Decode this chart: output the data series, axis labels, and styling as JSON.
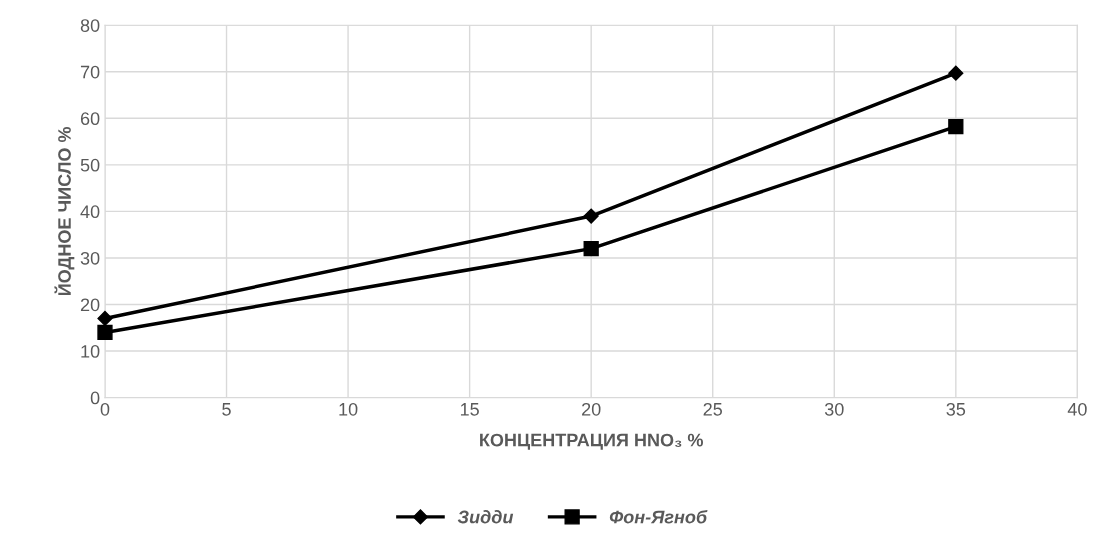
{
  "chart_data": {
    "type": "line",
    "xlabel": "КОНЦЕНТРАЦИЯ HNO₃ %",
    "ylabel": "ЙОДНОЕ ЧИСЛО %",
    "xlim": [
      0,
      40
    ],
    "xticks": [
      0,
      5,
      10,
      15,
      20,
      25,
      30,
      35,
      40
    ],
    "ylim": [
      0,
      80
    ],
    "yticks": [
      0,
      10,
      20,
      30,
      40,
      50,
      60,
      70,
      80
    ],
    "grid": true,
    "legend": "bottom",
    "line_style": "solid",
    "series": [
      {
        "name": "Зидди",
        "color": "#000000",
        "marker": "diamond",
        "x": [
          0,
          20,
          35
        ],
        "values": [
          17,
          39,
          69.7
        ]
      },
      {
        "name": "Фон-Ягноб",
        "color": "#000000",
        "marker": "square",
        "x": [
          0,
          20,
          35
        ],
        "values": [
          14,
          32,
          58.2
        ]
      }
    ]
  }
}
